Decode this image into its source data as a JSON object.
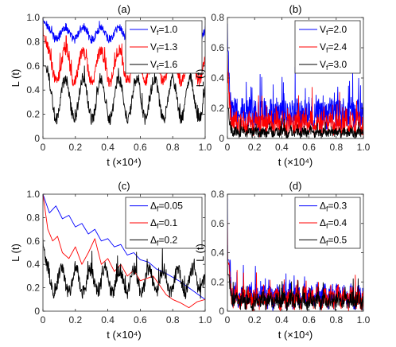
{
  "colors": {
    "blue": "#0000ff",
    "red": "#ff0000",
    "black": "#000000",
    "axis": "#262626"
  },
  "chart_data": [
    {
      "type": "line",
      "title": "(a)",
      "xlabel": "t (×10⁴)",
      "ylabel": "L (t)",
      "xlim": [
        0,
        1
      ],
      "ylim": [
        0,
        1
      ],
      "xticks": [
        "0",
        "0.2",
        "0.4",
        "0.6",
        "0.8",
        "1.0"
      ],
      "yticks": [
        "0",
        "0.2",
        "0.4",
        "0.6",
        "0.8",
        "1.0"
      ],
      "legend_position": "top-right",
      "series": [
        {
          "name": "V_f=1.0",
          "sub": "f",
          "label_pre": "V",
          "label_post": "=1.0",
          "color": "blue",
          "start": 1.0,
          "mean": 0.87,
          "amp": 0.05,
          "period": 0.11,
          "noise": 0.035,
          "min": 0.75,
          "max": 0.97
        },
        {
          "name": "V_f=1.3",
          "sub": "f",
          "label_pre": "V",
          "label_post": "=1.3",
          "color": "red",
          "start": 1.0,
          "mean": 0.6,
          "amp": 0.13,
          "period": 0.11,
          "noise": 0.05,
          "min": 0.39,
          "max": 0.85
        },
        {
          "name": "V_f=1.6",
          "sub": "f",
          "label_pre": "V",
          "label_post": "=1.6",
          "color": "black",
          "start": 1.0,
          "mean": 0.33,
          "amp": 0.17,
          "period": 0.11,
          "noise": 0.05,
          "min": 0.06,
          "max": 0.6
        }
      ]
    },
    {
      "type": "line",
      "title": "(b)",
      "xlabel": "t (×10⁴)",
      "ylabel": "L (t)",
      "xlim": [
        0,
        1
      ],
      "ylim": [
        0,
        0.8
      ],
      "xticks": [
        "0",
        "0.2",
        "0.4",
        "0.6",
        "0.8",
        "1.0"
      ],
      "yticks": [
        "0",
        "0.2",
        "0.4",
        "0.6",
        "0.8"
      ],
      "legend_position": "top-right",
      "series": [
        {
          "name": "V_f=2.0",
          "sub": "f",
          "label_pre": "V",
          "label_post": "=2.0",
          "color": "blue",
          "start": 0.76,
          "mean": 0.16,
          "amp": 0.02,
          "period": 0.05,
          "noise": 0.1,
          "min": 0.0,
          "max": 0.58
        },
        {
          "name": "V_f=2.4",
          "sub": "f",
          "label_pre": "V",
          "label_post": "=2.4",
          "color": "red",
          "start": 0.55,
          "mean": 0.1,
          "amp": 0.02,
          "period": 0.05,
          "noise": 0.07,
          "min": 0.0,
          "max": 0.45
        },
        {
          "name": "V_f=3.0",
          "sub": "f",
          "label_pre": "V",
          "label_post": "=3.0",
          "color": "black",
          "start": 0.3,
          "mean": 0.04,
          "amp": 0.01,
          "period": 0.05,
          "noise": 0.03,
          "min": 0.0,
          "max": 0.2
        }
      ]
    },
    {
      "type": "line",
      "title": "(c)",
      "xlabel": "t (×10⁴)",
      "ylabel": "L (t)",
      "xlim": [
        0,
        1
      ],
      "ylim": [
        0,
        1
      ],
      "xticks": [
        "0",
        "0.2",
        "0.4",
        "0.6",
        "0.8",
        "1.0"
      ],
      "yticks": [
        "0",
        "0.2",
        "0.4",
        "0.6",
        "0.8",
        "1.0"
      ],
      "legend_position": "top-right",
      "series": [
        {
          "name": "Δ_f=0.05",
          "sub": "f",
          "label_pre": "Δ",
          "label_post": "=0.05",
          "color": "blue",
          "points": [
            [
              0,
              1.0
            ],
            [
              0.04,
              0.84
            ],
            [
              0.08,
              0.9
            ],
            [
              0.12,
              0.79
            ],
            [
              0.16,
              0.82
            ],
            [
              0.2,
              0.72
            ],
            [
              0.24,
              0.75
            ],
            [
              0.28,
              0.66
            ],
            [
              0.32,
              0.7
            ],
            [
              0.36,
              0.6
            ],
            [
              0.4,
              0.62
            ],
            [
              0.44,
              0.55
            ],
            [
              0.48,
              0.57
            ],
            [
              0.52,
              0.48
            ],
            [
              0.56,
              0.5
            ],
            [
              0.6,
              0.44
            ],
            [
              0.65,
              0.42
            ],
            [
              0.7,
              0.36
            ],
            [
              0.75,
              0.33
            ],
            [
              0.8,
              0.29
            ],
            [
              0.85,
              0.25
            ],
            [
              0.9,
              0.2
            ],
            [
              0.95,
              0.15
            ],
            [
              1.0,
              0.1
            ]
          ]
        },
        {
          "name": "Δ_f=0.1",
          "sub": "f",
          "label_pre": "Δ",
          "label_post": "=0.1",
          "color": "red",
          "points": [
            [
              0,
              1.0
            ],
            [
              0.03,
              0.7
            ],
            [
              0.06,
              0.6
            ],
            [
              0.09,
              0.64
            ],
            [
              0.12,
              0.5
            ],
            [
              0.16,
              0.45
            ],
            [
              0.2,
              0.55
            ],
            [
              0.24,
              0.4
            ],
            [
              0.28,
              0.5
            ],
            [
              0.32,
              0.62
            ],
            [
              0.36,
              0.4
            ],
            [
              0.4,
              0.45
            ],
            [
              0.44,
              0.34
            ],
            [
              0.48,
              0.4
            ],
            [
              0.52,
              0.3
            ],
            [
              0.56,
              0.35
            ],
            [
              0.6,
              0.26
            ],
            [
              0.64,
              0.28
            ],
            [
              0.68,
              0.3
            ],
            [
              0.72,
              0.22
            ],
            [
              0.76,
              0.14
            ],
            [
              0.8,
              0.1
            ],
            [
              0.85,
              0.07
            ],
            [
              0.9,
              0.03
            ],
            [
              0.95,
              0.08
            ],
            [
              1.0,
              0.1
            ]
          ]
        },
        {
          "name": "Δ_f=0.2",
          "sub": "f",
          "label_pre": "Δ",
          "label_post": "=0.2",
          "color": "black",
          "start": 0.62,
          "mean": 0.26,
          "amp": 0.1,
          "period": 0.09,
          "noise": 0.06,
          "min": 0.0,
          "max": 0.55
        }
      ]
    },
    {
      "type": "line",
      "title": "(d)",
      "xlabel": "t (×10⁴)",
      "ylabel": "L (t)",
      "xlim": [
        0,
        1
      ],
      "ylim": [
        0,
        0.8
      ],
      "xticks": [
        "0",
        "0.2",
        "0.4",
        "0.6",
        "0.8",
        "1.0"
      ],
      "yticks": [
        "0",
        "0.2",
        "0.4",
        "0.6",
        "0.8"
      ],
      "legend_position": "top-right",
      "series": [
        {
          "name": "Δ_f=0.3",
          "sub": "f",
          "label_pre": "Δ",
          "label_post": "=0.3",
          "color": "blue",
          "start": 0.78,
          "mean": 0.1,
          "amp": 0.03,
          "period": 0.05,
          "noise": 0.07,
          "min": 0.0,
          "max": 0.35
        },
        {
          "name": "Δ_f=0.4",
          "sub": "f",
          "label_pre": "Δ",
          "label_post": "=0.4",
          "color": "red",
          "start": 0.62,
          "mean": 0.09,
          "amp": 0.03,
          "period": 0.05,
          "noise": 0.065,
          "min": 0.0,
          "max": 0.33
        },
        {
          "name": "Δ_f=0.5",
          "sub": "f",
          "label_pre": "Δ",
          "label_post": "=0.5",
          "color": "black",
          "start": 0.45,
          "mean": 0.07,
          "amp": 0.02,
          "period": 0.05,
          "noise": 0.05,
          "min": 0.0,
          "max": 0.25
        }
      ]
    }
  ]
}
